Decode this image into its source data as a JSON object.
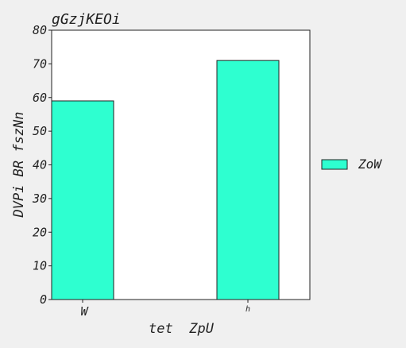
{
  "chart_data": {
    "type": "bar",
    "title": "gGzjKEOi",
    "xlabel": "tet  ZpU",
    "ylabel": "DVPi BR fszNn",
    "categories": [
      "W",
      "h"
    ],
    "series": [
      {
        "name": "ZoW",
        "values": [
          59,
          71
        ],
        "color": "#2effd0"
      }
    ],
    "ylim": [
      0,
      80
    ],
    "yticks": [
      "0",
      "10",
      "20",
      "30",
      "40",
      "50",
      "60",
      "70",
      "80"
    ],
    "grid": false,
    "legend": "right",
    "colors": {
      "background": "#f0f0f0",
      "plot_background": "#ffffff",
      "axis": "#222222"
    }
  }
}
